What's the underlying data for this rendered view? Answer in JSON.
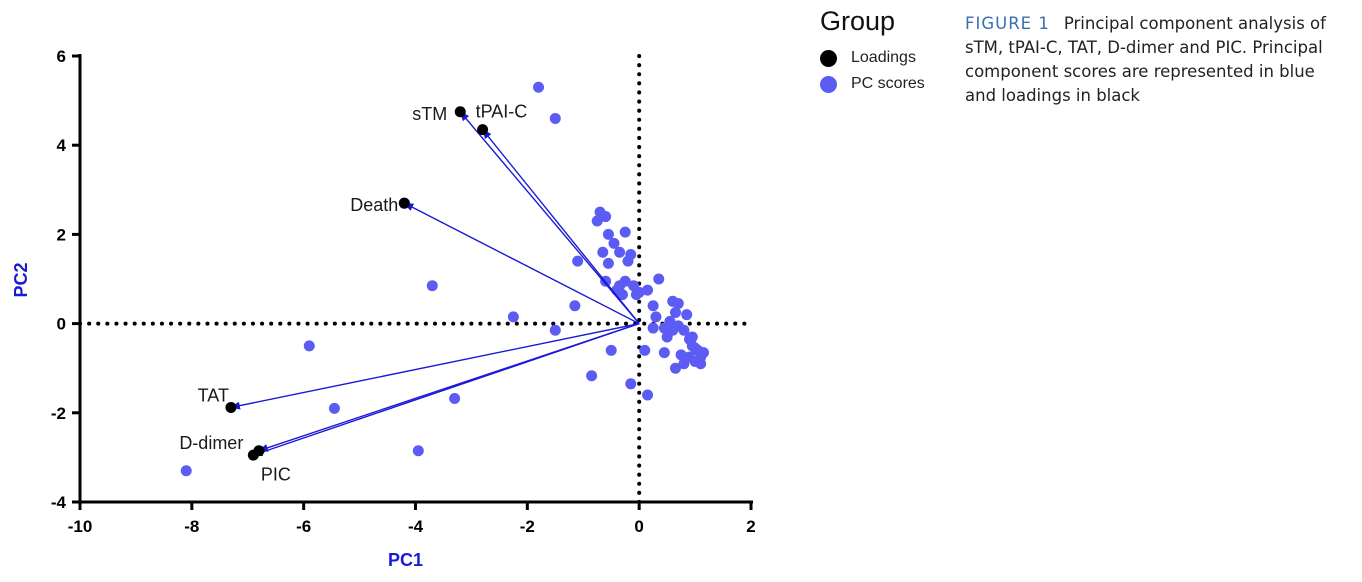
{
  "chart_data": {
    "type": "scatter",
    "title": "",
    "xlabel": "PC1",
    "ylabel": "PC2",
    "xlim": [
      -10,
      2
    ],
    "ylim": [
      -4,
      6
    ],
    "xticks": [
      "-10",
      "-8",
      "-6",
      "-4",
      "-2",
      "0",
      "2"
    ],
    "yticks": [
      "-4",
      "-2",
      "0",
      "2",
      "4",
      "6"
    ],
    "reference_lines": "dotted lines at x = 0 and y = 0",
    "arrow_color": "#1a1ad6",
    "series": [
      {
        "name": "Loadings",
        "color": "#000000",
        "points": [
          {
            "label": "sTM",
            "x": -3.2,
            "y": 4.75
          },
          {
            "label": "tPAI-C",
            "x": -2.8,
            "y": 4.35
          },
          {
            "label": "Death",
            "x": -4.2,
            "y": 2.7
          },
          {
            "label": "TAT",
            "x": -7.3,
            "y": -1.88
          },
          {
            "label": "D-dimer",
            "x": -6.9,
            "y": -2.95
          },
          {
            "label": "PIC",
            "x": -6.8,
            "y": -2.85
          }
        ]
      },
      {
        "name": "PC scores",
        "color": "#5c5cf5",
        "points": [
          [
            -1.8,
            5.3
          ],
          [
            -1.5,
            4.6
          ],
          [
            -4.2,
            2.7
          ],
          [
            -3.7,
            0.85
          ],
          [
            -5.9,
            -0.5
          ],
          [
            -5.45,
            -1.9
          ],
          [
            -3.3,
            -1.68
          ],
          [
            -3.95,
            -2.85
          ],
          [
            -8.1,
            -3.3
          ],
          [
            -2.25,
            0.15
          ],
          [
            -1.5,
            -0.15
          ],
          [
            -1.1,
            1.4
          ],
          [
            -1.15,
            0.4
          ],
          [
            -0.85,
            -1.17
          ],
          [
            -0.5,
            -0.6
          ],
          [
            -0.15,
            -1.35
          ],
          [
            0.15,
            -1.6
          ],
          [
            0.1,
            -0.6
          ],
          [
            -0.7,
            2.5
          ],
          [
            -0.6,
            2.4
          ],
          [
            -0.75,
            2.3
          ],
          [
            -0.25,
            2.05
          ],
          [
            -0.55,
            2.0
          ],
          [
            -0.45,
            1.8
          ],
          [
            -0.35,
            1.6
          ],
          [
            -0.15,
            1.55
          ],
          [
            -0.65,
            1.6
          ],
          [
            -0.2,
            1.4
          ],
          [
            -0.6,
            0.95
          ],
          [
            -0.55,
            1.35
          ],
          [
            -0.35,
            0.85
          ],
          [
            -0.25,
            0.95
          ],
          [
            -0.1,
            0.85
          ],
          [
            0.0,
            0.7
          ],
          [
            0.15,
            0.75
          ],
          [
            -0.4,
            0.75
          ],
          [
            -0.3,
            0.65
          ],
          [
            -0.05,
            0.65
          ],
          [
            0.35,
            1.0
          ],
          [
            0.6,
            0.5
          ],
          [
            0.7,
            0.45
          ],
          [
            0.65,
            0.25
          ],
          [
            0.85,
            0.2
          ],
          [
            0.55,
            0.05
          ],
          [
            0.7,
            -0.05
          ],
          [
            0.8,
            -0.15
          ],
          [
            0.5,
            -0.3
          ],
          [
            0.9,
            -0.35
          ],
          [
            0.95,
            -0.5
          ],
          [
            1.0,
            -0.55
          ],
          [
            1.05,
            -0.6
          ],
          [
            0.75,
            -0.7
          ],
          [
            0.9,
            -0.75
          ],
          [
            1.1,
            -0.75
          ],
          [
            1.0,
            -0.85
          ],
          [
            1.1,
            -0.9
          ],
          [
            0.8,
            -0.9
          ],
          [
            0.65,
            -1.0
          ],
          [
            0.45,
            -0.65
          ],
          [
            0.25,
            0.4
          ],
          [
            0.3,
            0.15
          ],
          [
            0.25,
            -0.1
          ],
          [
            0.45,
            -0.1
          ],
          [
            0.6,
            -0.15
          ],
          [
            1.15,
            -0.65
          ],
          [
            0.95,
            -0.3
          ]
        ]
      }
    ],
    "legend": {
      "title": "Group",
      "placement": "right"
    }
  },
  "caption": {
    "label": "FIGURE 1",
    "text": "Principal component analysis of sTM, tPAI-C, TAT, D-dimer and PIC. Principal component scores are represented in blue and loadings in black"
  }
}
